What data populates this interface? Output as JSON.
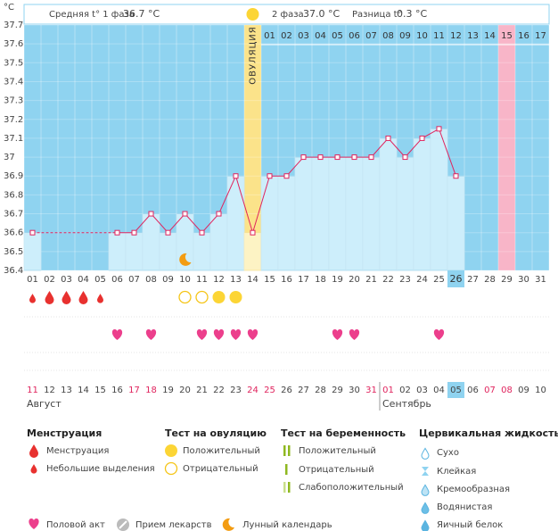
{
  "chart_data": {
    "type": "line",
    "y_unit": "°C",
    "ylim": [
      36.4,
      37.7
    ],
    "yticks": [
      36.4,
      36.5,
      36.6,
      36.7,
      36.8,
      36.9,
      37,
      37.1,
      37.2,
      37.3,
      37.4,
      37.5,
      37.6,
      37.7
    ],
    "categories": [
      "01",
      "02",
      "03",
      "04",
      "05",
      "06",
      "07",
      "08",
      "09",
      "10",
      "11",
      "12",
      "13",
      "14",
      "15",
      "16",
      "17",
      "18",
      "19",
      "20",
      "21",
      "22",
      "23",
      "24",
      "25",
      "26",
      "27",
      "28",
      "29",
      "30",
      "31"
    ],
    "values": [
      36.6,
      null,
      null,
      null,
      null,
      36.6,
      36.6,
      36.7,
      36.6,
      36.7,
      36.6,
      36.7,
      36.9,
      36.6,
      36.9,
      36.9,
      37,
      37,
      37,
      37,
      37,
      37.1,
      37,
      37.1,
      37.15,
      36.9,
      null,
      null,
      null,
      null,
      null
    ],
    "line_color": "#e0245e",
    "bar_color": "#cdeefb",
    "background_color": "#8fd3f0",
    "ovulation_day": 13,
    "ovulation_label": "ОВУЛЯЦИЯ",
    "ovulation_color": "#fbe38a",
    "marked_day": 28,
    "marked_color": "#f8b5c8",
    "current_day": 25,
    "phase2_day_labels": [
      "01",
      "02",
      "03",
      "04",
      "05",
      "06",
      "07",
      "08",
      "09",
      "10",
      "11",
      "12",
      "13",
      "14",
      "15",
      "16",
      "17"
    ],
    "dates": [
      "11",
      "12",
      "13",
      "14",
      "15",
      "16",
      "17",
      "18",
      "19",
      "20",
      "21",
      "22",
      "23",
      "24",
      "25",
      "26",
      "27",
      "28",
      "29",
      "30",
      "31",
      "01",
      "02",
      "03",
      "04",
      "05",
      "06",
      "07",
      "08",
      "09",
      "10"
    ],
    "weekend_dates": [
      0,
      6,
      7,
      13,
      14,
      20,
      21,
      27,
      28
    ],
    "months": [
      {
        "label": "Август",
        "start": 0
      },
      {
        "label": "Сентябрь",
        "start": 21
      }
    ],
    "menstruation_heavy": [
      1,
      2,
      3
    ],
    "menstruation_light": [
      0,
      4
    ],
    "ovulation_test_positive": [
      11,
      12
    ],
    "ovulation_test_negative": [
      9,
      10
    ],
    "intercourse": [
      5,
      7,
      10,
      11,
      12,
      13,
      18,
      19,
      24
    ],
    "moon": [
      9
    ]
  },
  "header": {
    "phase1_label": "Средняя t° 1 фаза",
    "phase1_value": "36.7 °C",
    "phase2_label": "2 фаза",
    "phase2_value": "37.0 °C",
    "diff_label": "Разница t°",
    "diff_value": "0.3 °C"
  },
  "legend": {
    "menstruation": {
      "title": "Менструация",
      "items": [
        "Менструация",
        "Небольшие выделения"
      ]
    },
    "ovulation_test": {
      "title": "Тест на овуляцию",
      "items": [
        "Положительный",
        "Отрицательный"
      ]
    },
    "pregnancy_test": {
      "title": "Тест на беременность",
      "items": [
        "Положительный",
        "Отрицательный",
        "Слабоположительный"
      ]
    },
    "cervical_fluid": {
      "title": "Цервикальная жидкость",
      "items": [
        "Сухо",
        "Клейкая",
        "Кремообразная",
        "Водянистая",
        "Яичный белок"
      ]
    },
    "other": [
      "Половой акт",
      "Прием лекарств",
      "Лунный календарь"
    ]
  }
}
